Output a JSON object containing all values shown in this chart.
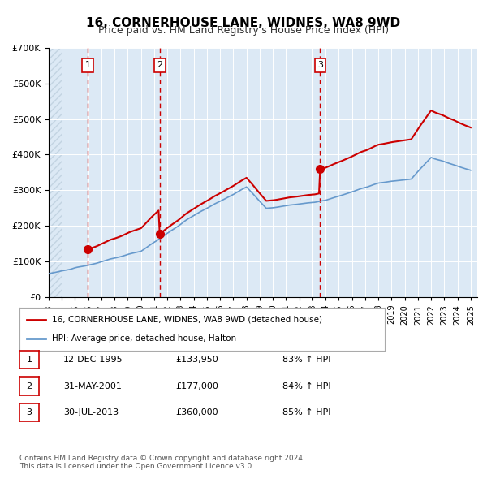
{
  "title": "16, CORNERHOUSE LANE, WIDNES, WA8 9WD",
  "subtitle": "Price paid vs. HM Land Registry's House Price Index (HPI)",
  "title_fontsize": 12,
  "subtitle_fontsize": 9.5,
  "background_color": "#ffffff",
  "plot_bg_color": "#dce9f5",
  "hatch_color": "#c8d8ea",
  "grid_color": "#ffffff",
  "ylabel": "",
  "ylim": [
    0,
    700000
  ],
  "yticks": [
    0,
    100000,
    200000,
    300000,
    400000,
    500000,
    600000,
    700000
  ],
  "ytick_labels": [
    "£0",
    "£100K",
    "£200K",
    "£300K",
    "£400K",
    "£500K",
    "£600K",
    "£700K"
  ],
  "xlim_start": 1993.0,
  "xlim_end": 2025.5,
  "sale_color": "#cc0000",
  "hpi_color": "#6699cc",
  "marker_color": "#cc0000",
  "vline_color": "#cc0000",
  "sale_dates": [
    1995.95,
    2001.41,
    2013.58
  ],
  "sale_prices": [
    133950,
    177000,
    360000
  ],
  "sale_labels": [
    "1",
    "2",
    "3"
  ],
  "vline_x": [
    1995.95,
    2001.41,
    2013.58
  ],
  "legend_sale_label": "16, CORNERHOUSE LANE, WIDNES, WA8 9WD (detached house)",
  "legend_hpi_label": "HPI: Average price, detached house, Halton",
  "table_rows": [
    [
      "1",
      "12-DEC-1995",
      "£133,950",
      "83% ↑ HPI"
    ],
    [
      "2",
      "31-MAY-2001",
      "£177,000",
      "84% ↑ HPI"
    ],
    [
      "3",
      "30-JUL-2013",
      "£360,000",
      "85% ↑ HPI"
    ]
  ],
  "footer_text": "Contains HM Land Registry data © Crown copyright and database right 2024.\nThis data is licensed under the Open Government Licence v3.0.",
  "hpi_xstart": 1993.0,
  "hpi_xend": 2025.0
}
